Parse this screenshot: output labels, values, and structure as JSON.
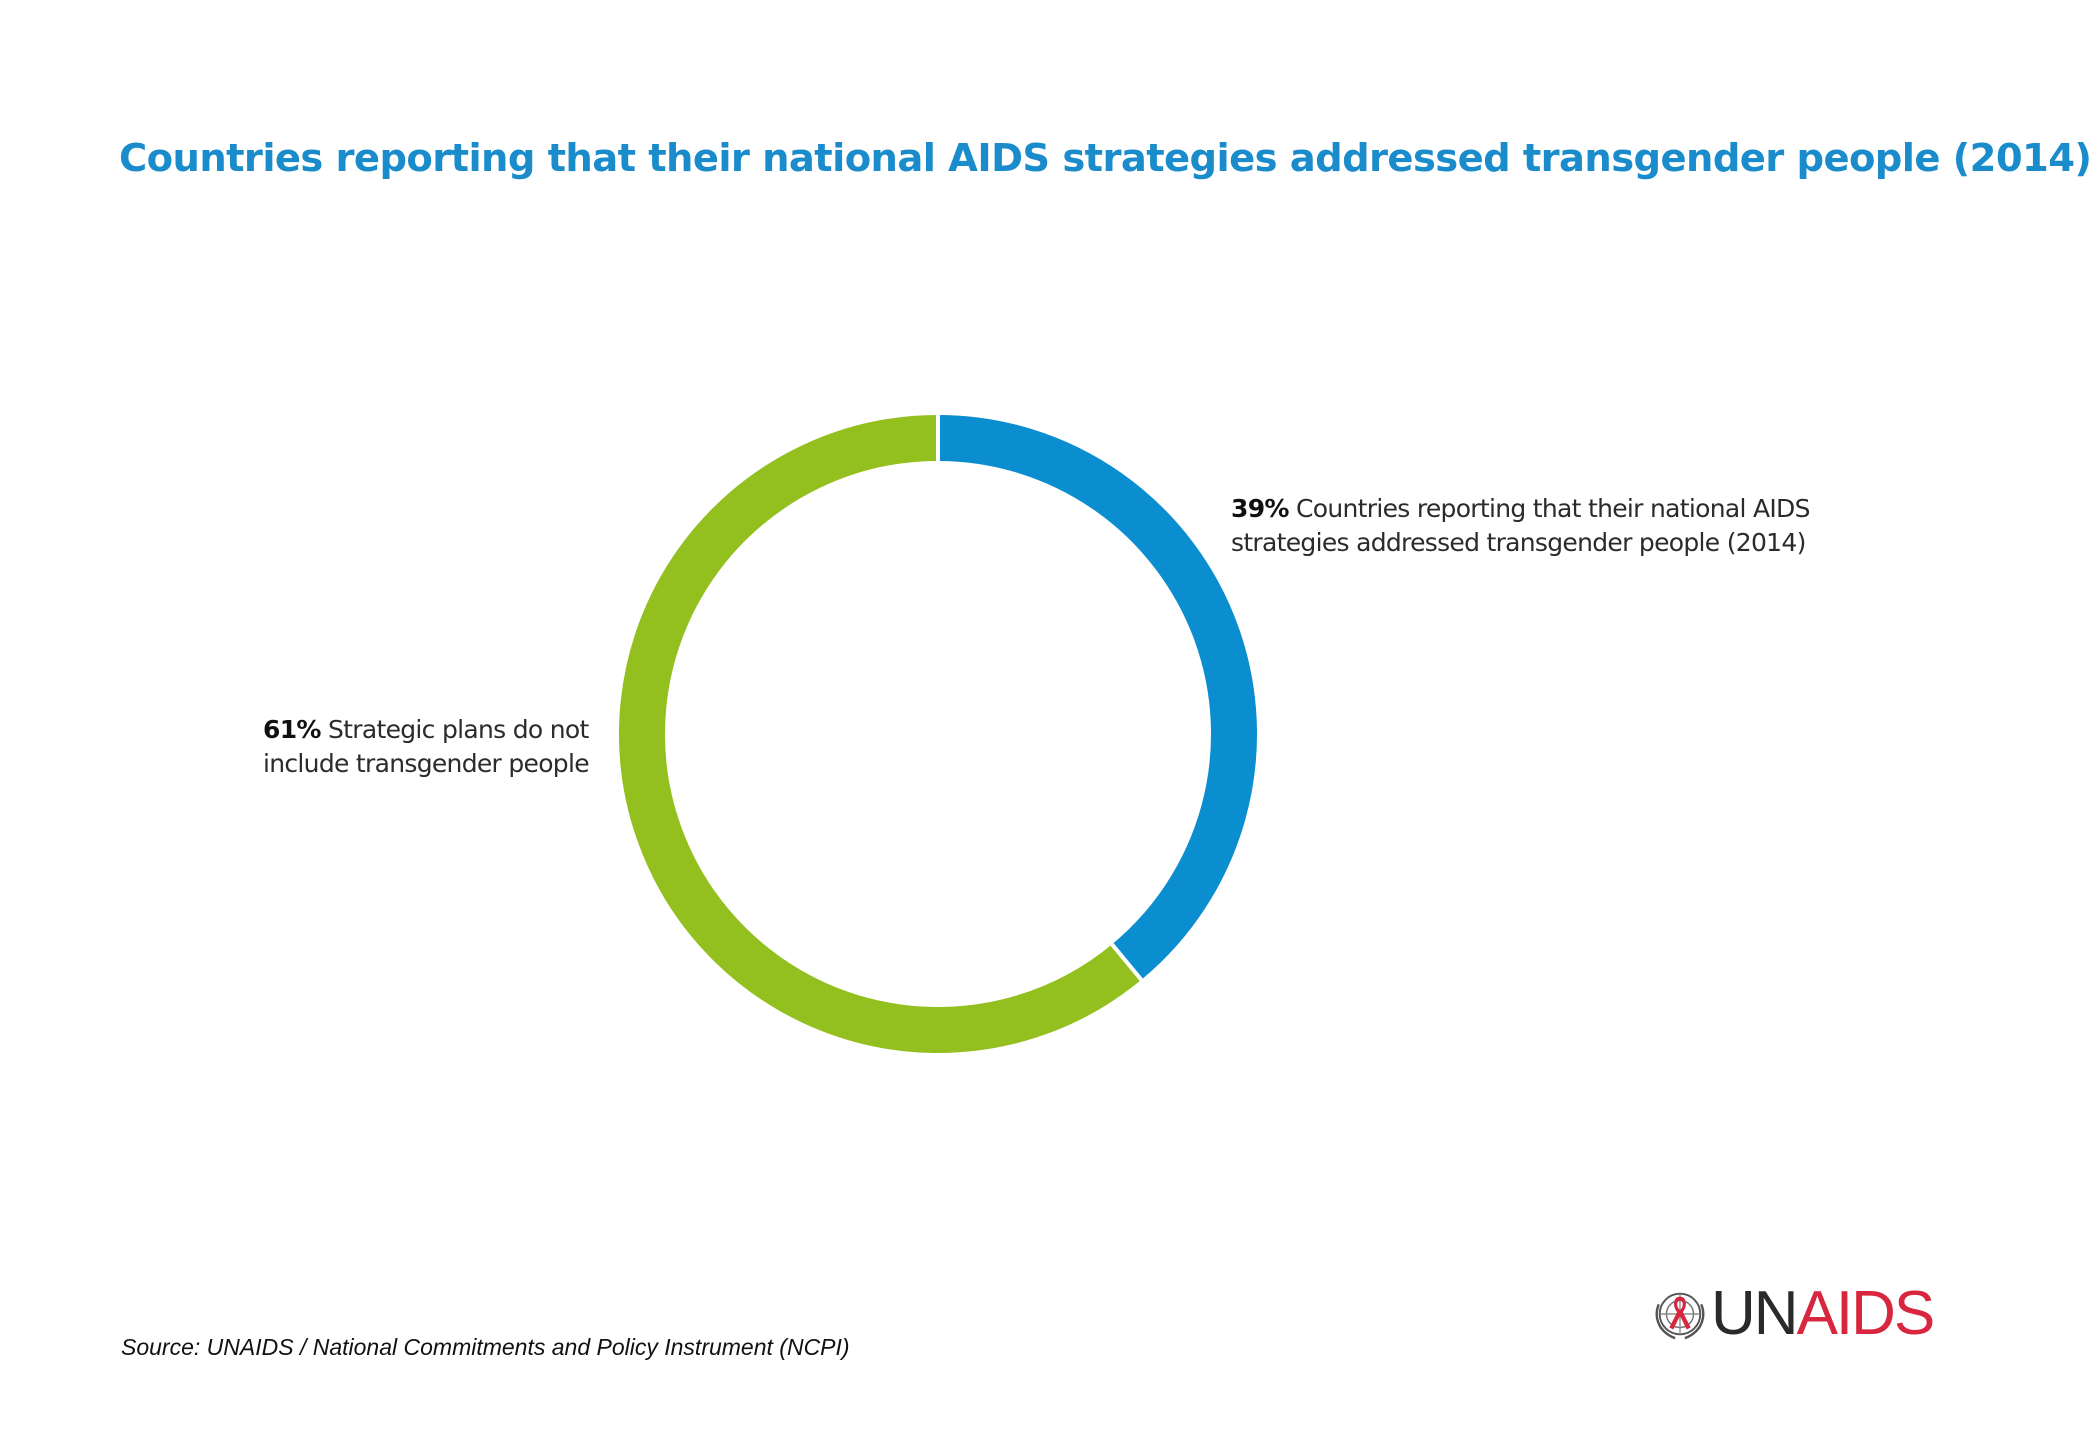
{
  "title": "Countries reporting that their national AIDS strategies addressed transgender people (2014)",
  "chart_data": {
    "type": "pie",
    "style": "donut",
    "title": "Countries reporting that their national AIDS strategies addressed transgender people (2014)",
    "slices": [
      {
        "value": 39,
        "pct_label": "39%",
        "text": "Countries reporting that their national AIDS strategies addressed transgender people (2014)",
        "color": "#0a8ed0"
      },
      {
        "value": 61,
        "pct_label": "61%",
        "text": "Strategic plans do not include transgender people",
        "color": "#93c01f"
      }
    ],
    "start_angle": "12 o'clock",
    "direction": "clockwise",
    "legend": "none (direct labels)"
  },
  "source": "Source: UNAIDS / National Commitments and Policy Instrument (NCPI)",
  "logo": {
    "text_dark": "UN",
    "text_red": "AIDS",
    "emblem": "un-emblem-ribbon-icon",
    "color_dark": "#2a2a2a",
    "color_red": "#d7263d"
  }
}
